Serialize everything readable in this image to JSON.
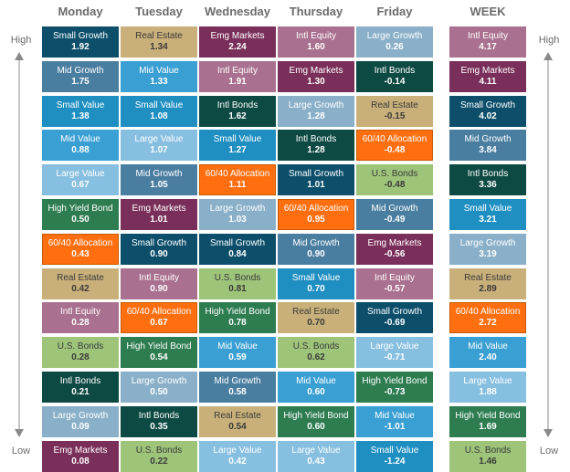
{
  "axis": {
    "top_label": "High",
    "bottom_label": "Low"
  },
  "colors": {
    "Small Growth": "#0d4f6b",
    "Mid Growth": "#4a7ea0",
    "Small Value": "#1f8fc2",
    "Mid Value": "#3a9fd3",
    "Large Value": "#87bfe0",
    "Large Growth": "#8ab0c9",
    "Real Estate": "#c9b07a",
    "Emg Markets": "#7a2f5b",
    "Intl Equity": "#a9708f",
    "Intl Bonds": "#0e4a44",
    "U.S. Bonds": "#9ec47a",
    "High Yield Bond": "#2e7d50",
    "60/40 Allocation": "#ff6f0f"
  },
  "chart_data": {
    "type": "table",
    "columns": [
      {
        "name": "Monday",
        "cells": [
          {
            "cat": "Small Growth",
            "val": "1.92"
          },
          {
            "cat": "Mid Growth",
            "val": "1.75"
          },
          {
            "cat": "Small Value",
            "val": "1.38"
          },
          {
            "cat": "Mid Value",
            "val": "0.88"
          },
          {
            "cat": "Large Value",
            "val": "0.67"
          },
          {
            "cat": "High Yield Bond",
            "val": "0.50"
          },
          {
            "cat": "60/40 Allocation",
            "val": "0.43"
          },
          {
            "cat": "Real Estate",
            "val": "0.42"
          },
          {
            "cat": "Intl Equity",
            "val": "0.28"
          },
          {
            "cat": "U.S. Bonds",
            "val": "0.28"
          },
          {
            "cat": "Intl Bonds",
            "val": "0.21"
          },
          {
            "cat": "Large Growth",
            "val": "0.09"
          },
          {
            "cat": "Emg Markets",
            "val": "0.08"
          }
        ]
      },
      {
        "name": "Tuesday",
        "cells": [
          {
            "cat": "Real Estate",
            "val": "1.34"
          },
          {
            "cat": "Mid Value",
            "val": "1.33"
          },
          {
            "cat": "Small Value",
            "val": "1.08"
          },
          {
            "cat": "Large Value",
            "val": "1.07"
          },
          {
            "cat": "Mid Growth",
            "val": "1.05"
          },
          {
            "cat": "Emg Markets",
            "val": "1.01"
          },
          {
            "cat": "Small Growth",
            "val": "0.90"
          },
          {
            "cat": "Intl Equity",
            "val": "0.90"
          },
          {
            "cat": "60/40 Allocation",
            "val": "0.67"
          },
          {
            "cat": "High Yield Bond",
            "val": "0.54"
          },
          {
            "cat": "Large Growth",
            "val": "0.50"
          },
          {
            "cat": "Intl Bonds",
            "val": "0.35"
          },
          {
            "cat": "U.S. Bonds",
            "val": "0.22"
          }
        ]
      },
      {
        "name": "Wednesday",
        "cells": [
          {
            "cat": "Emg Markets",
            "val": "2.24"
          },
          {
            "cat": "Intl Equity",
            "val": "1.91"
          },
          {
            "cat": "Intl Bonds",
            "val": "1.62"
          },
          {
            "cat": "Small Value",
            "val": "1.27"
          },
          {
            "cat": "60/40 Allocation",
            "val": "1.11"
          },
          {
            "cat": "Large Growth",
            "val": "1.03"
          },
          {
            "cat": "Small Growth",
            "val": "0.84"
          },
          {
            "cat": "U.S. Bonds",
            "val": "0.81"
          },
          {
            "cat": "High Yield Bond",
            "val": "0.78"
          },
          {
            "cat": "Mid Value",
            "val": "0.59"
          },
          {
            "cat": "Mid Growth",
            "val": "0.58"
          },
          {
            "cat": "Real Estate",
            "val": "0.54"
          },
          {
            "cat": "Large Value",
            "val": "0.42"
          }
        ]
      },
      {
        "name": "Thursday",
        "cells": [
          {
            "cat": "Intl Equity",
            "val": "1.60"
          },
          {
            "cat": "Emg Markets",
            "val": "1.30"
          },
          {
            "cat": "Large Growth",
            "val": "1.28"
          },
          {
            "cat": "Intl Bonds",
            "val": "1.28"
          },
          {
            "cat": "Small Growth",
            "val": "1.01"
          },
          {
            "cat": "60/40 Allocation",
            "val": "0.95"
          },
          {
            "cat": "Mid Growth",
            "val": "0.90"
          },
          {
            "cat": "Small Value",
            "val": "0.70"
          },
          {
            "cat": "Real Estate",
            "val": "0.70"
          },
          {
            "cat": "U.S. Bonds",
            "val": "0.62"
          },
          {
            "cat": "Mid Value",
            "val": "0.60"
          },
          {
            "cat": "High Yield Bond",
            "val": "0.60"
          },
          {
            "cat": "Large Value",
            "val": "0.43"
          }
        ]
      },
      {
        "name": "Friday",
        "cells": [
          {
            "cat": "Large Growth",
            "val": "0.26"
          },
          {
            "cat": "Intl Bonds",
            "val": "-0.14"
          },
          {
            "cat": "Real Estate",
            "val": "-0.15"
          },
          {
            "cat": "60/40 Allocation",
            "val": "-0.48"
          },
          {
            "cat": "U.S. Bonds",
            "val": "-0.48"
          },
          {
            "cat": "Mid Growth",
            "val": "-0.49"
          },
          {
            "cat": "Emg Markets",
            "val": "-0.56"
          },
          {
            "cat": "Intl Equity",
            "val": "-0.57"
          },
          {
            "cat": "Small Growth",
            "val": "-0.69"
          },
          {
            "cat": "Large Value",
            "val": "-0.71"
          },
          {
            "cat": "High Yield Bond",
            "val": "-0.73"
          },
          {
            "cat": "Mid Value",
            "val": "-1.01"
          },
          {
            "cat": "Small Value",
            "val": "-1.24"
          }
        ]
      },
      {
        "name": "WEEK",
        "cells": [
          {
            "cat": "Intl Equity",
            "val": "4.17"
          },
          {
            "cat": "Emg Markets",
            "val": "4.11"
          },
          {
            "cat": "Small Growth",
            "val": "4.02"
          },
          {
            "cat": "Mid Growth",
            "val": "3.84"
          },
          {
            "cat": "Intl Bonds",
            "val": "3.36"
          },
          {
            "cat": "Small Value",
            "val": "3.21"
          },
          {
            "cat": "Large Growth",
            "val": "3.19"
          },
          {
            "cat": "Real Estate",
            "val": "2.89"
          },
          {
            "cat": "60/40 Allocation",
            "val": "2.72"
          },
          {
            "cat": "Mid Value",
            "val": "2.40"
          },
          {
            "cat": "Large Value",
            "val": "1.88"
          },
          {
            "cat": "High Yield Bond",
            "val": "1.69"
          },
          {
            "cat": "U.S. Bonds",
            "val": "1.46"
          }
        ]
      }
    ]
  }
}
